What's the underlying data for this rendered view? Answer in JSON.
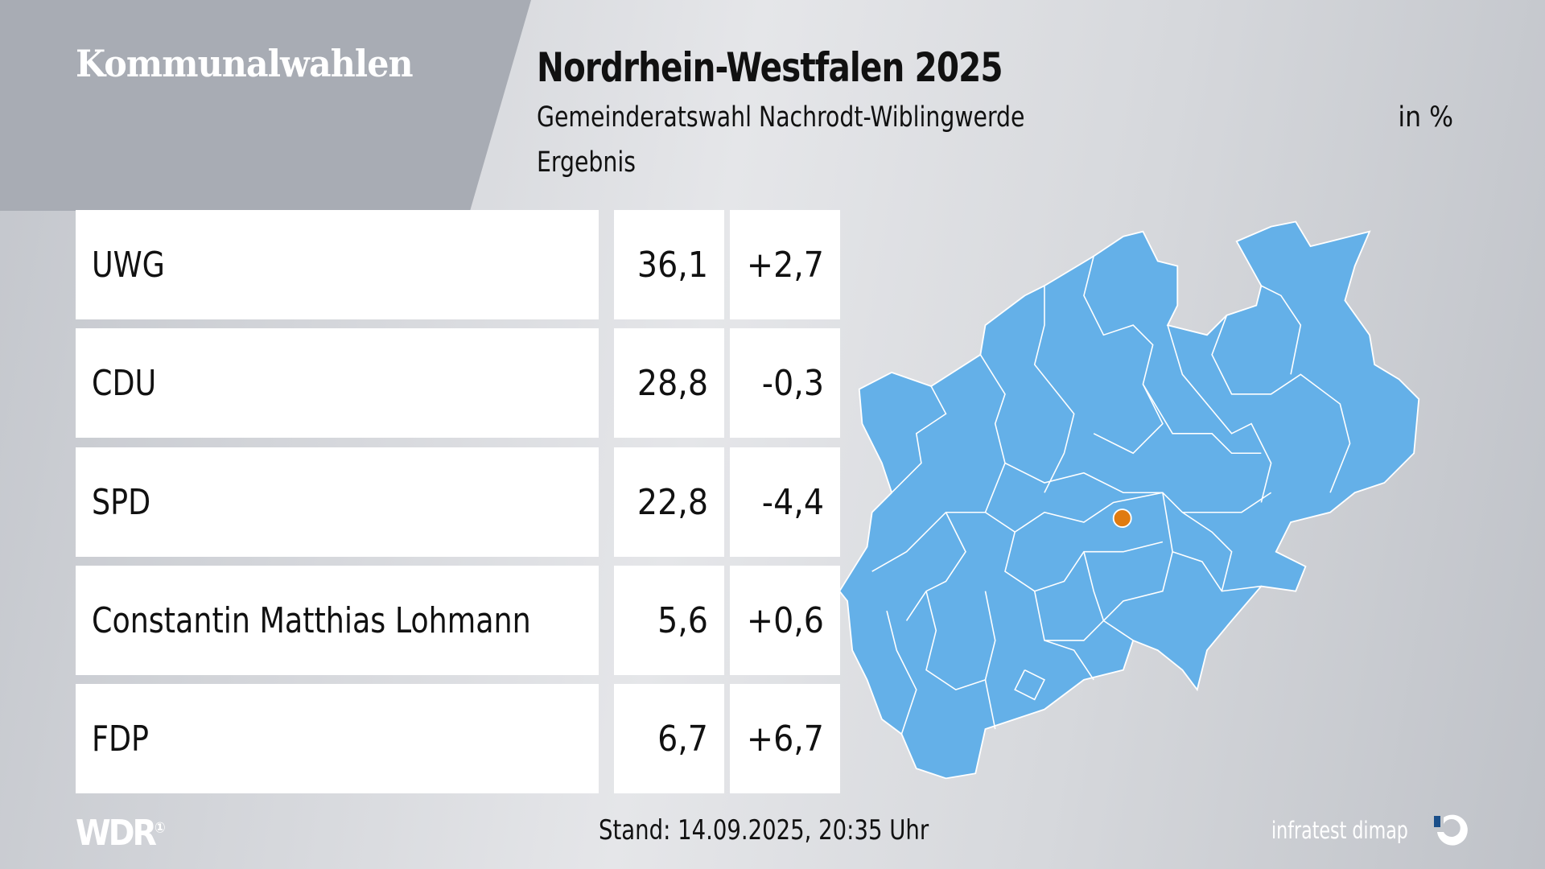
{
  "header": {
    "section": "Kommunalwahlen",
    "title": "Nordrhein-Westfalen 2025",
    "subtitle": "Gemeinderatswahl Nachrodt-Wiblingwerde",
    "unit": "in %",
    "result_label": "Ergebnis"
  },
  "results": [
    {
      "party": "UWG",
      "value": "36,1",
      "diff": "+2,7"
    },
    {
      "party": "CDU",
      "value": "28,8",
      "diff": "-0,3"
    },
    {
      "party": "SPD",
      "value": "22,8",
      "diff": "-4,4"
    },
    {
      "party": "Constantin Matthias Lohmann",
      "value": "5,6",
      "diff": "+0,6"
    },
    {
      "party": "FDP",
      "value": "6,7",
      "diff": "+6,7"
    }
  ],
  "map": {
    "fill_color": "#64b0e8",
    "marker_color": "#e07b10"
  },
  "footer": {
    "broadcaster": "WDR",
    "timestamp": "Stand: 14.09.2025, 20:35 Uhr",
    "pollster": "infratest dimap"
  }
}
